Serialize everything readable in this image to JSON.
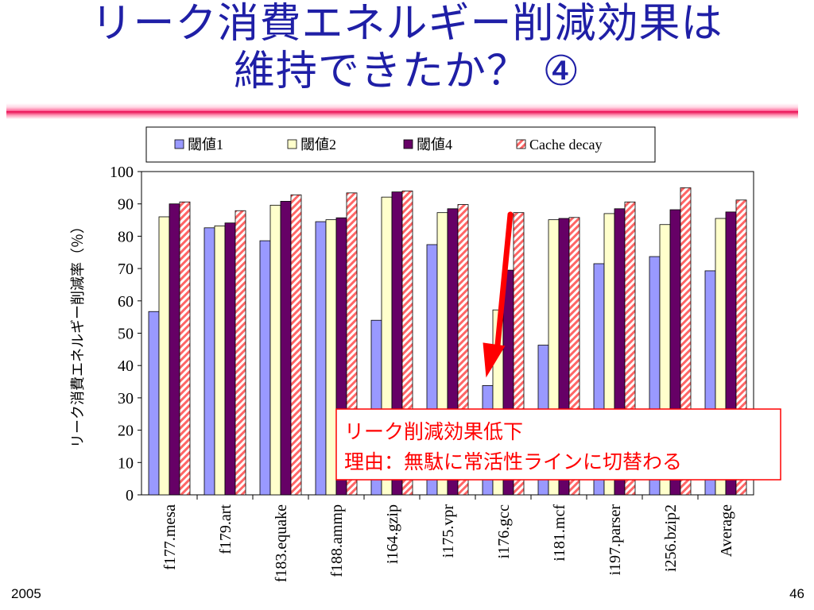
{
  "slide": {
    "title_line1": "リーク消費エネルギー削減効果は",
    "title_line2": "維持できたか？ ④",
    "footer_left": "2005",
    "page_number": "46"
  },
  "colors": {
    "title": "#1f1fa6",
    "threshold1": "#9999ff",
    "threshold2": "#ffffcc",
    "threshold4": "#660066",
    "cache_decay": "#ff6666",
    "arrow": "#ff0000",
    "callout_border": "#ff0000",
    "callout_text": "#ff0000"
  },
  "callout": {
    "line1": "リーク削減効果低下",
    "line2": "理由：無駄に常活性ラインに切替わる"
  },
  "chart_data": {
    "type": "bar",
    "ylabel": "リーク消費エネルギー削減率（％）",
    "xlabel": "",
    "ylim": [
      0,
      100
    ],
    "yticks": [
      0,
      10,
      20,
      30,
      40,
      50,
      60,
      70,
      80,
      90,
      100
    ],
    "grid": false,
    "legend_position": "top",
    "categories": [
      "f177.mesa",
      "f179.art",
      "f183.equake",
      "f188.ammp",
      "i164.gzip",
      "i175.vpr",
      "i176.gcc",
      "i181.mcf",
      "i197.parser",
      "i256.bzip2",
      "Average"
    ],
    "series": [
      {
        "name": "閾値1",
        "pattern": "solid",
        "values": [
          56.7,
          82.6,
          78.6,
          84.5,
          54.0,
          77.4,
          33.8,
          46.3,
          71.5,
          73.7,
          69.3
        ]
      },
      {
        "name": "閾値2",
        "pattern": "solid",
        "values": [
          86.0,
          83.2,
          89.6,
          85.1,
          92.1,
          87.3,
          57.2,
          85.1,
          87.0,
          83.6,
          85.5
        ]
      },
      {
        "name": "閾値4",
        "pattern": "solid",
        "values": [
          90.0,
          84.1,
          90.8,
          85.7,
          93.7,
          88.5,
          69.5,
          85.5,
          88.5,
          88.2,
          87.5
        ]
      },
      {
        "name": "Cache decay",
        "pattern": "hatched",
        "values": [
          90.6,
          87.9,
          92.8,
          93.4,
          94.0,
          89.8,
          87.3,
          85.8,
          90.6,
          95.0,
          91.2
        ]
      }
    ]
  }
}
